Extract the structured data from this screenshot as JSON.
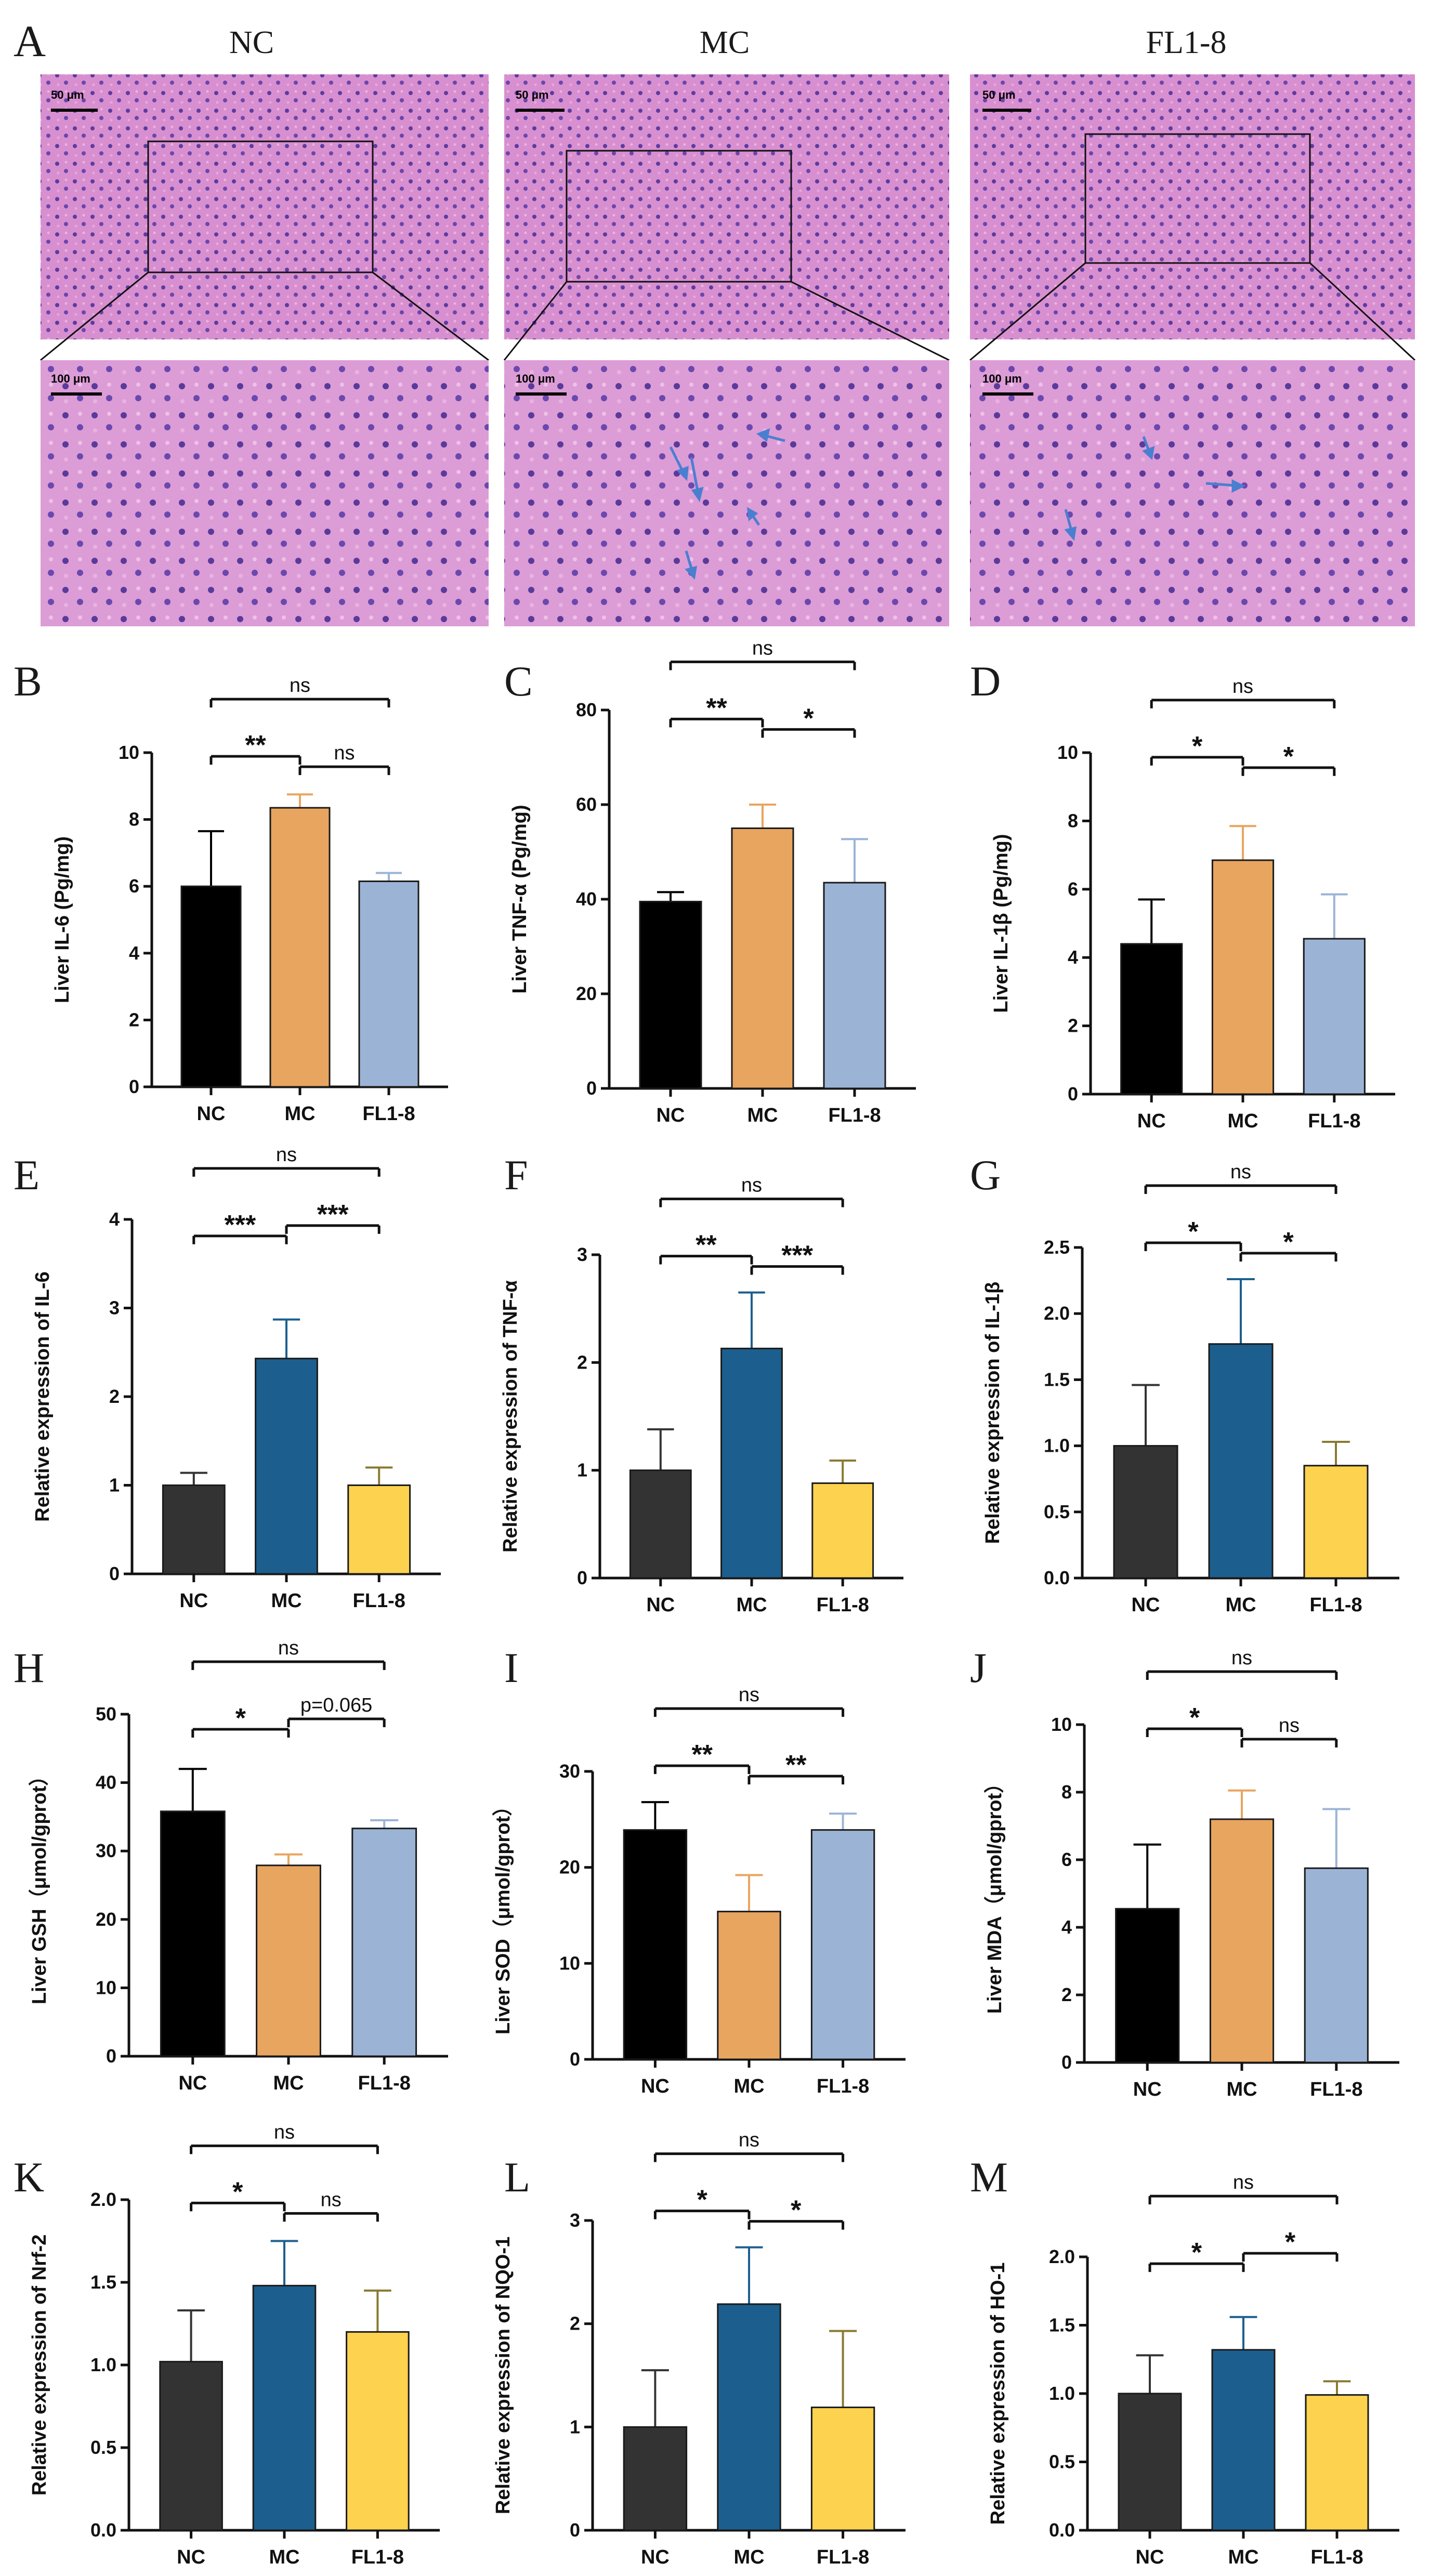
{
  "panel_a": {
    "label": "A",
    "columns": [
      "NC",
      "MC",
      "FL1-8"
    ],
    "scale_top": "50 μm",
    "scale_bottom": "100 μm"
  },
  "chart_data": [
    {
      "id": "B",
      "type": "bar",
      "categories": [
        "NC",
        "MC",
        "FL1-8"
      ],
      "values": [
        6.0,
        8.35,
        6.15
      ],
      "errors": [
        1.65,
        0.4,
        0.25
      ],
      "ylabel": "Liver IL-6 (Pg/mg)",
      "ylim": [
        0,
        10
      ],
      "yticks": [
        "0",
        "2",
        "4",
        "6",
        "8",
        "10"
      ],
      "colors": [
        "#000000",
        "#E8A560",
        "#9BB4D6"
      ],
      "comparisons": [
        {
          "from": 0,
          "to": 2,
          "text": "ns"
        },
        {
          "from": 1,
          "to": 2,
          "text": "ns"
        },
        {
          "from": 0,
          "to": 1,
          "text": "**"
        }
      ]
    },
    {
      "id": "C",
      "type": "bar",
      "categories": [
        "NC",
        "MC",
        "FL1-8"
      ],
      "values": [
        39.5,
        55,
        43.5
      ],
      "errors": [
        2,
        5,
        9.2
      ],
      "ylabel": "Liver TNF-α (Pg/mg)",
      "ylim": [
        0,
        80
      ],
      "yticks": [
        "0",
        "20",
        "40",
        "60",
        "80"
      ],
      "colors": [
        "#000000",
        "#E8A560",
        "#9BB4D6"
      ],
      "comparisons": [
        {
          "from": 0,
          "to": 2,
          "text": "ns"
        },
        {
          "from": 1,
          "to": 2,
          "text": "*"
        },
        {
          "from": 0,
          "to": 1,
          "text": "**"
        }
      ]
    },
    {
      "id": "D",
      "type": "bar",
      "categories": [
        "NC",
        "MC",
        "FL1-8"
      ],
      "values": [
        4.4,
        6.85,
        4.55
      ],
      "errors": [
        1.3,
        1.0,
        1.3
      ],
      "ylabel": "Liver IL-1β (Pg/mg)",
      "ylim": [
        0,
        10
      ],
      "yticks": [
        "0",
        "2",
        "4",
        "6",
        "8",
        "10"
      ],
      "colors": [
        "#000000",
        "#E8A560",
        "#9BB4D6"
      ],
      "comparisons": [
        {
          "from": 0,
          "to": 2,
          "text": "ns"
        },
        {
          "from": 1,
          "to": 2,
          "text": "*"
        },
        {
          "from": 0,
          "to": 1,
          "text": "*"
        }
      ]
    },
    {
      "id": "E",
      "type": "bar",
      "categories": [
        "NC",
        "MC",
        "FL1-8"
      ],
      "values": [
        1.0,
        2.43,
        1.0
      ],
      "errors": [
        0.14,
        0.44,
        0.2
      ],
      "ylabel": "Relative expression of IL-6",
      "ylim": [
        0,
        4
      ],
      "yticks": [
        "0",
        "1",
        "2",
        "3",
        "4"
      ],
      "colors": [
        "#333333",
        "#1C5F8E",
        "#FDD24E"
      ],
      "comparisons": [
        {
          "from": 0,
          "to": 2,
          "text": "ns"
        },
        {
          "from": 0,
          "to": 1,
          "text": "***"
        },
        {
          "from": 1,
          "to": 2,
          "text": "***"
        }
      ]
    },
    {
      "id": "F",
      "type": "bar",
      "categories": [
        "NC",
        "MC",
        "FL1-8"
      ],
      "values": [
        1.0,
        2.13,
        0.88
      ],
      "errors": [
        0.38,
        0.52,
        0.21
      ],
      "ylabel": "Relative expression of TNF-α",
      "ylim": [
        0,
        3
      ],
      "yticks": [
        "0",
        "1",
        "2",
        "3"
      ],
      "colors": [
        "#333333",
        "#1C5F8E",
        "#FDD24E"
      ],
      "comparisons": [
        {
          "from": 0,
          "to": 2,
          "text": "ns"
        },
        {
          "from": 1,
          "to": 2,
          "text": "***"
        },
        {
          "from": 0,
          "to": 1,
          "text": "**"
        }
      ]
    },
    {
      "id": "G",
      "type": "bar",
      "categories": [
        "NC",
        "MC",
        "FL1-8"
      ],
      "values": [
        1.0,
        1.77,
        0.85
      ],
      "errors": [
        0.46,
        0.49,
        0.18
      ],
      "ylabel": "Relative expression of IL-1β",
      "ylim": [
        0,
        2.5
      ],
      "yticks": [
        "0.0",
        "0.5",
        "1.0",
        "1.5",
        "2.0",
        "2.5"
      ],
      "colors": [
        "#333333",
        "#1C5F8E",
        "#FDD24E"
      ],
      "comparisons": [
        {
          "from": 0,
          "to": 2,
          "text": "ns"
        },
        {
          "from": 1,
          "to": 2,
          "text": "*"
        },
        {
          "from": 0,
          "to": 1,
          "text": "*"
        }
      ]
    },
    {
      "id": "H",
      "type": "bar",
      "categories": [
        "NC",
        "MC",
        "FL1-8"
      ],
      "values": [
        35.8,
        27.9,
        33.3
      ],
      "errors": [
        6.2,
        1.6,
        1.2
      ],
      "ylabel": "Liver GSH（μmol/gprot）",
      "ylim": [
        0,
        50
      ],
      "yticks": [
        "0",
        "10",
        "20",
        "30",
        "40",
        "50"
      ],
      "colors": [
        "#000000",
        "#E8A560",
        "#9BB4D6"
      ],
      "comparisons": [
        {
          "from": 0,
          "to": 2,
          "text": "ns"
        },
        {
          "from": 0,
          "to": 1,
          "text": "*"
        },
        {
          "from": 1,
          "to": 2,
          "text": "p=0.065"
        }
      ]
    },
    {
      "id": "I",
      "type": "bar",
      "categories": [
        "NC",
        "MC",
        "FL1-8"
      ],
      "values": [
        23.9,
        15.4,
        23.9
      ],
      "errors": [
        2.9,
        3.8,
        1.7
      ],
      "ylabel": "Liver SOD（μmol/gprot）",
      "ylim": [
        0,
        30
      ],
      "yticks": [
        "0",
        "10",
        "20",
        "30"
      ],
      "colors": [
        "#000000",
        "#E8A560",
        "#9BB4D6"
      ],
      "comparisons": [
        {
          "from": 0,
          "to": 2,
          "text": "ns"
        },
        {
          "from": 1,
          "to": 2,
          "text": "**"
        },
        {
          "from": 0,
          "to": 1,
          "text": "**"
        }
      ]
    },
    {
      "id": "J",
      "type": "bar",
      "categories": [
        "NC",
        "MC",
        "FL1-8"
      ],
      "values": [
        4.55,
        7.2,
        5.75
      ],
      "errors": [
        1.9,
        0.85,
        1.75
      ],
      "ylabel": "Liver MDA（μmol/gprot）",
      "ylim": [
        0,
        10
      ],
      "yticks": [
        "0",
        "2",
        "4",
        "6",
        "8",
        "10"
      ],
      "colors": [
        "#000000",
        "#E8A560",
        "#9BB4D6"
      ],
      "comparisons": [
        {
          "from": 0,
          "to": 2,
          "text": "ns"
        },
        {
          "from": 1,
          "to": 2,
          "text": "ns"
        },
        {
          "from": 0,
          "to": 1,
          "text": "*"
        }
      ]
    },
    {
      "id": "K",
      "type": "bar",
      "categories": [
        "NC",
        "MC",
        "FL1-8"
      ],
      "values": [
        1.02,
        1.48,
        1.2
      ],
      "errors": [
        0.31,
        0.27,
        0.25
      ],
      "ylabel": "Relative expression of Nrf-2",
      "ylim": [
        0,
        2
      ],
      "yticks": [
        "0.0",
        "0.5",
        "1.0",
        "1.5",
        "2.0"
      ],
      "colors": [
        "#333333",
        "#1C5F8E",
        "#FDD24E"
      ],
      "comparisons": [
        {
          "from": 0,
          "to": 2,
          "text": "ns"
        },
        {
          "from": 1,
          "to": 2,
          "text": "ns"
        },
        {
          "from": 0,
          "to": 1,
          "text": "*"
        }
      ]
    },
    {
      "id": "L",
      "type": "bar",
      "categories": [
        "NC",
        "MC",
        "FL1-8"
      ],
      "values": [
        1.0,
        2.19,
        1.19
      ],
      "errors": [
        0.55,
        0.55,
        0.74
      ],
      "ylabel": "Relative expression of NQO-1",
      "ylim": [
        0,
        3
      ],
      "yticks": [
        "0",
        "1",
        "2",
        "3"
      ],
      "colors": [
        "#333333",
        "#1C5F8E",
        "#FDD24E"
      ],
      "comparisons": [
        {
          "from": 0,
          "to": 2,
          "text": "ns"
        },
        {
          "from": 1,
          "to": 2,
          "text": "*"
        },
        {
          "from": 0,
          "to": 1,
          "text": "*"
        }
      ]
    },
    {
      "id": "M",
      "type": "bar",
      "categories": [
        "NC",
        "MC",
        "FL1-8"
      ],
      "values": [
        1.0,
        1.32,
        0.99
      ],
      "errors": [
        0.28,
        0.24,
        0.1
      ],
      "ylabel": "Relative expression of HO-1",
      "ylim": [
        0,
        2
      ],
      "yticks": [
        "0.0",
        "0.5",
        "1.0",
        "1.5",
        "2.0"
      ],
      "colors": [
        "#333333",
        "#1C5F8E",
        "#FDD24E"
      ],
      "comparisons": [
        {
          "from": 0,
          "to": 2,
          "text": "ns"
        },
        {
          "from": 0,
          "to": 1,
          "text": "*"
        },
        {
          "from": 1,
          "to": 2,
          "text": "*"
        }
      ]
    }
  ]
}
